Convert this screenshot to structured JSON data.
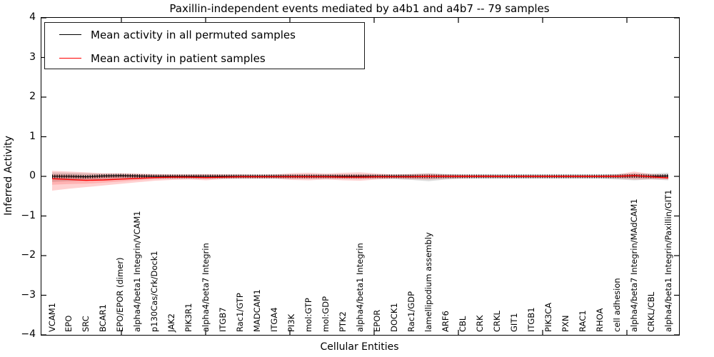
{
  "figure": {
    "title": "Paxillin-independent events mediated by a4b1 and a4b7 -- 79 samples",
    "xlabel": "Cellular Entities",
    "ylabel": "Inferred Activity"
  },
  "legend": {
    "entries": [
      {
        "label": "Mean activity in all permuted samples",
        "color": "#000000"
      },
      {
        "label": "Mean activity in patient samples",
        "color": "#ff0000"
      }
    ],
    "position": "upper left"
  },
  "axes": {
    "y_tick_labels": [
      "4",
      "3",
      "2",
      "1",
      "0",
      "−1",
      "−2",
      "−3",
      "−4"
    ],
    "ylim": [
      -4,
      4
    ],
    "grid": false
  },
  "chart_data": {
    "type": "line",
    "title": "Paxillin-independent events mediated by a4b1 and a4b7 -- 79 samples",
    "xlabel": "Cellular Entities",
    "ylabel": "Inferred Activity",
    "ylim": [
      -4,
      4
    ],
    "grid": false,
    "legend_position": "upper left",
    "categories": [
      "VCAM1",
      "EPO",
      "SRC",
      "BCAR1",
      "EPO/EPOR (dimer)",
      "alpha4/beta1 Integrin/VCAM1",
      "p130Cas/Crk/Dock1",
      "JAK2",
      "PIK3R1",
      "alpha4/beta7 Integrin",
      "ITGB7",
      "Rac1/GTP",
      "MADCAM1",
      "ITGA4",
      "PI3K",
      "mol:GTP",
      "mol:GDP",
      "PTK2",
      "alpha4/beta1 Integrin",
      "EPOR",
      "DOCK1",
      "Rac1/GDP",
      "lamellipodium assembly",
      "ARF6",
      "CBL",
      "CRK",
      "CRKL",
      "GIT1",
      "ITGB1",
      "PIK3CA",
      "PXN",
      "RAC1",
      "RHOA",
      "cell adhesion",
      "alpha4/beta7 Integrin/MAdCAM1",
      "CRKL/CBL",
      "alpha4/beta1 Integrin/Paxillin/GIT1"
    ],
    "series": [
      {
        "name": "Mean activity in all permuted samples",
        "color": "#000000",
        "marker": "tick-comb",
        "values": [
          0,
          0,
          -0.01,
          0.01,
          0.02,
          0.01,
          0,
          0,
          0,
          0,
          0,
          0,
          0,
          0,
          0,
          0,
          0,
          0,
          0,
          0,
          0,
          0,
          0,
          0,
          0,
          0,
          0,
          0,
          0,
          0,
          0,
          0,
          0,
          0,
          0.01,
          0,
          0.01
        ]
      },
      {
        "name": "Mean activity in patient samples",
        "color": "#ff0000",
        "marker": "none",
        "values": [
          -0.06,
          -0.08,
          -0.1,
          -0.09,
          -0.07,
          -0.05,
          -0.03,
          -0.02,
          -0.02,
          -0.03,
          -0.02,
          -0.01,
          -0.01,
          -0.01,
          -0.01,
          -0.01,
          -0.01,
          -0.02,
          -0.02,
          -0.01,
          -0.01,
          -0.01,
          0,
          0,
          0,
          0,
          0,
          0,
          0,
          0,
          0,
          0,
          0,
          0,
          0.02,
          -0.01,
          -0.04
        ]
      }
    ],
    "bands": [
      {
        "name": "permuted-samples-std",
        "color": "#808080",
        "opacity": 0.28,
        "upper": [
          0.1,
          0.09,
          0.08,
          0.07,
          0.06,
          0.06,
          0.05,
          0.05,
          0.05,
          0.05,
          0.05,
          0.05,
          0.05,
          0.05,
          0.05,
          0.05,
          0.05,
          0.05,
          0.05,
          0.05,
          0.05,
          0.06,
          0.08,
          0.06,
          0.05,
          0.05,
          0.05,
          0.05,
          0.05,
          0.05,
          0.05,
          0.05,
          0.05,
          0.06,
          0.08,
          0.07,
          0.09
        ],
        "lower": [
          -0.14,
          -0.12,
          -0.11,
          -0.1,
          -0.08,
          -0.07,
          -0.06,
          -0.06,
          -0.06,
          -0.06,
          -0.06,
          -0.06,
          -0.06,
          -0.06,
          -0.06,
          -0.06,
          -0.06,
          -0.06,
          -0.06,
          -0.06,
          -0.07,
          -0.09,
          -0.12,
          -0.08,
          -0.06,
          -0.06,
          -0.06,
          -0.06,
          -0.06,
          -0.06,
          -0.06,
          -0.06,
          -0.06,
          -0.08,
          -0.1,
          -0.08,
          -0.1
        ]
      },
      {
        "name": "patient-samples-std-outer",
        "color": "#ff0000",
        "opacity": 0.18,
        "upper": [
          0.14,
          0.12,
          0.1,
          0.08,
          0.08,
          0.07,
          0.06,
          0.05,
          0.05,
          0.06,
          0.05,
          0.05,
          0.04,
          0.05,
          0.08,
          0.09,
          0.07,
          0.09,
          0.1,
          0.07,
          0.05,
          0.06,
          0.07,
          0.05,
          0.04,
          0.04,
          0.03,
          0.03,
          0.03,
          0.03,
          0.03,
          0.03,
          0.03,
          0.05,
          0.12,
          0.06,
          0.03
        ],
        "lower": [
          -0.36,
          -0.31,
          -0.27,
          -0.23,
          -0.19,
          -0.15,
          -0.11,
          -0.09,
          -0.08,
          -0.1,
          -0.07,
          -0.06,
          -0.06,
          -0.06,
          -0.09,
          -0.1,
          -0.08,
          -0.1,
          -0.11,
          -0.08,
          -0.06,
          -0.07,
          -0.08,
          -0.06,
          -0.05,
          -0.04,
          -0.04,
          -0.04,
          -0.04,
          -0.04,
          -0.04,
          -0.04,
          -0.04,
          -0.05,
          -0.08,
          -0.07,
          -0.08
        ]
      }
    ],
    "inner_band_scale": 0.5
  }
}
